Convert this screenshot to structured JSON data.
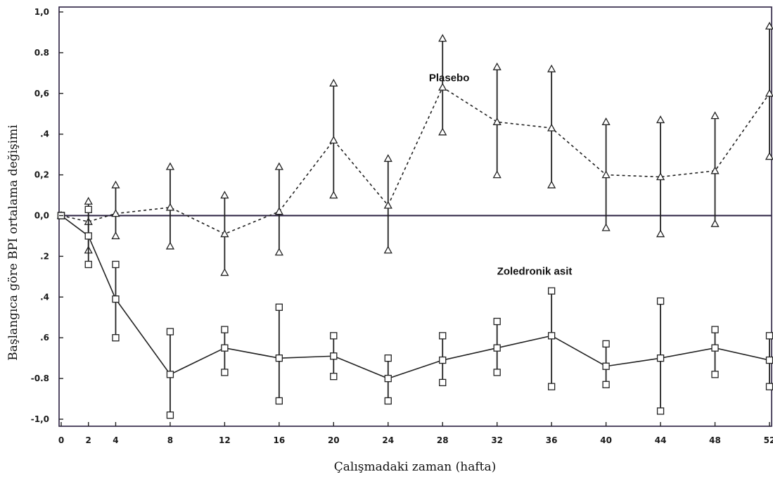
{
  "chart_data": {
    "type": "line",
    "title": "",
    "xlabel": "Çalışmadaki zaman (hafta)",
    "ylabel": "Başlangıca göre BPI ortalama değişimi",
    "x": [
      0,
      2,
      4,
      8,
      12,
      16,
      20,
      24,
      28,
      32,
      36,
      40,
      44,
      48,
      52
    ],
    "xlim": [
      0,
      52
    ],
    "ylim": [
      -1.0,
      1.0
    ],
    "x_ticks": [
      "0",
      "2",
      "4",
      "8",
      "12",
      "16",
      "20",
      "24",
      "28",
      "32",
      "36",
      "40",
      "44",
      "48",
      "52"
    ],
    "y_ticks": [
      {
        "value": 1.0,
        "label": "1,0"
      },
      {
        "value": 0.8,
        "label": "0.8"
      },
      {
        "value": 0.6,
        "label": "0,6"
      },
      {
        "value": 0.4,
        "label": ".4"
      },
      {
        "value": 0.2,
        "label": "0,2"
      },
      {
        "value": 0.0,
        "label": "0,0"
      },
      {
        "value": -0.2,
        "label": ".2"
      },
      {
        "value": -0.4,
        "label": ".4"
      },
      {
        "value": -0.6,
        "label": ".6"
      },
      {
        "value": -0.8,
        "label": "-0.8"
      },
      {
        "value": -1.0,
        "label": "-1,0"
      }
    ],
    "reference_line": 0.0,
    "grid": false,
    "series": [
      {
        "name": "Plasebo",
        "line_style": "dashed",
        "marker": "triangle",
        "values": [
          0.0,
          -0.03,
          0.01,
          0.04,
          -0.09,
          0.02,
          0.37,
          0.05,
          0.63,
          0.46,
          0.43,
          0.2,
          0.19,
          0.22,
          0.6
        ],
        "upper": [
          0.0,
          0.07,
          0.15,
          0.24,
          0.1,
          0.24,
          0.65,
          0.28,
          0.87,
          0.73,
          0.72,
          0.46,
          0.47,
          0.49,
          0.93
        ],
        "lower": [
          0.0,
          -0.17,
          -0.1,
          -0.15,
          -0.28,
          -0.18,
          0.1,
          -0.17,
          0.41,
          0.2,
          0.15,
          -0.06,
          -0.09,
          -0.04,
          0.29
        ],
        "label_pos": {
          "x": 27,
          "y": 0.66
        }
      },
      {
        "name": "Zoledronik asit",
        "line_style": "solid",
        "marker": "square",
        "values": [
          0.0,
          -0.1,
          -0.41,
          -0.78,
          -0.65,
          -0.7,
          -0.69,
          -0.8,
          -0.71,
          -0.65,
          -0.59,
          -0.74,
          -0.7,
          -0.65,
          -0.71
        ],
        "upper": [
          0.0,
          0.03,
          -0.24,
          -0.57,
          -0.56,
          -0.45,
          -0.59,
          -0.7,
          -0.59,
          -0.52,
          -0.37,
          -0.63,
          -0.42,
          -0.56,
          -0.59
        ],
        "lower": [
          0.0,
          -0.24,
          -0.6,
          -0.98,
          -0.77,
          -0.91,
          -0.79,
          -0.91,
          -0.82,
          -0.77,
          -0.84,
          -0.83,
          -0.96,
          -0.78,
          -0.84
        ],
        "label_pos": {
          "x": 32,
          "y": -0.29
        }
      }
    ]
  }
}
